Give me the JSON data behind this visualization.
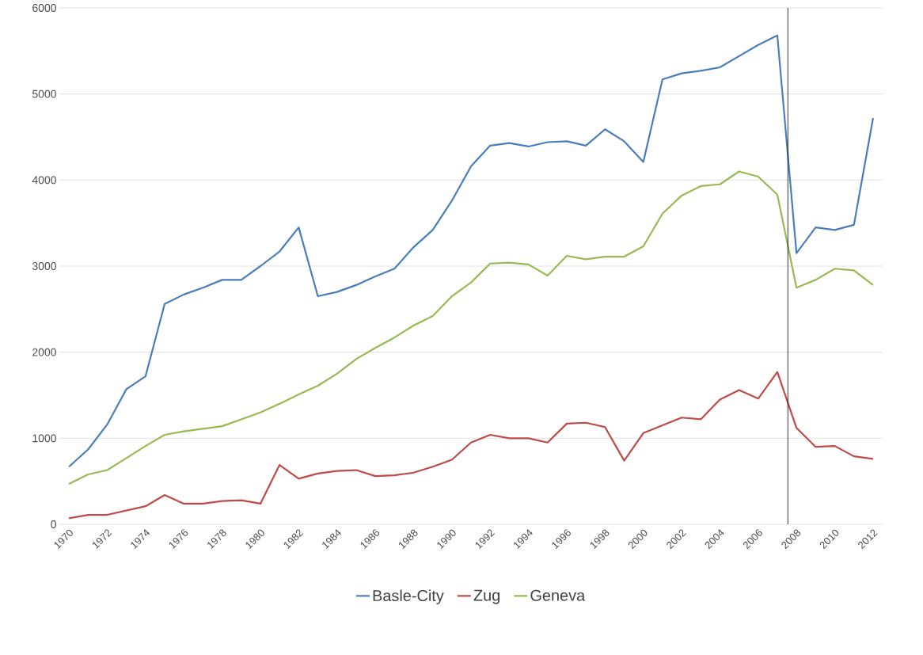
{
  "chart_data": {
    "type": "line",
    "x": [
      1970,
      1971,
      1972,
      1973,
      1974,
      1975,
      1976,
      1977,
      1978,
      1979,
      1980,
      1981,
      1982,
      1983,
      1984,
      1985,
      1986,
      1987,
      1988,
      1989,
      1990,
      1991,
      1992,
      1993,
      1994,
      1995,
      1996,
      1997,
      1998,
      1999,
      2000,
      2001,
      2002,
      2003,
      2004,
      2005,
      2006,
      2007,
      2008,
      2009,
      2010,
      2011,
      2012
    ],
    "series": [
      {
        "name": "Basle-City",
        "color": "#4a7ebb",
        "values": [
          670,
          870,
          1160,
          1570,
          1720,
          2560,
          2670,
          2750,
          2840,
          2840,
          3000,
          3170,
          3450,
          2650,
          2700,
          2780,
          2880,
          2970,
          3220,
          3420,
          3760,
          4160,
          4400,
          4430,
          4390,
          4440,
          4450,
          4400,
          4590,
          4450,
          4210,
          5170,
          5240,
          5270,
          5310,
          5440,
          5570,
          5680,
          3150,
          3450,
          3420,
          3480,
          4720
        ]
      },
      {
        "name": "Zug",
        "color": "#be4b48",
        "values": [
          70,
          110,
          110,
          160,
          210,
          340,
          240,
          240,
          270,
          280,
          240,
          690,
          530,
          590,
          620,
          630,
          560,
          570,
          600,
          670,
          750,
          950,
          1040,
          1000,
          1000,
          950,
          1170,
          1180,
          1130,
          740,
          1060,
          1150,
          1240,
          1220,
          1450,
          1560,
          1460,
          1770,
          1120,
          900,
          910,
          790,
          760
        ]
      },
      {
        "name": "Geneva",
        "color": "#98b954",
        "values": [
          470,
          580,
          630,
          770,
          910,
          1040,
          1080,
          1110,
          1140,
          1220,
          1300,
          1400,
          1510,
          1610,
          1750,
          1920,
          2050,
          2170,
          2310,
          2420,
          2650,
          2810,
          3030,
          3040,
          3020,
          2890,
          3120,
          3080,
          3110,
          3110,
          3230,
          3610,
          3820,
          3930,
          3950,
          4100,
          4040,
          3830,
          2750,
          2840,
          2970,
          2950,
          2780
        ]
      }
    ],
    "xlim": [
      1969.5,
      2012.5
    ],
    "xticks": [
      1970,
      1972,
      1974,
      1976,
      1978,
      1980,
      1982,
      1984,
      1986,
      1988,
      1990,
      1992,
      1994,
      1996,
      1998,
      2000,
      2002,
      2004,
      2006,
      2008,
      2010,
      2012
    ],
    "ylim": [
      0,
      6000
    ],
    "yticks": [
      0,
      1000,
      2000,
      3000,
      4000,
      5000,
      6000
    ],
    "ref_lines": [
      {
        "axis": "x",
        "value": 2007.55,
        "color": "#000000"
      }
    ],
    "grid": "y",
    "legend": "bottom",
    "marker": "none",
    "line_style": "solid"
  }
}
